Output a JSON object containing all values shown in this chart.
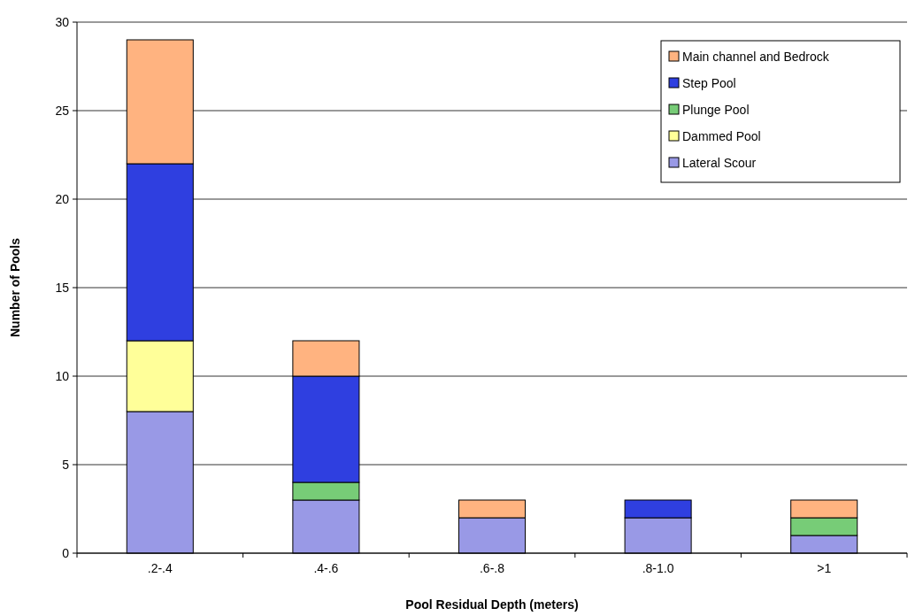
{
  "chart_data": {
    "type": "bar",
    "stacked": true,
    "xlabel": "Pool Residual Depth (meters)",
    "ylabel": "Number of Pools",
    "categories": [
      ".2-.4",
      ".4-.6",
      ".6-.8",
      ".8-1.0",
      ">1"
    ],
    "series": [
      {
        "name": "Lateral Scour",
        "color": "#9999e6",
        "values": [
          8,
          3,
          2,
          2,
          1
        ]
      },
      {
        "name": "Dammed Pool",
        "color": "#ffff99",
        "values": [
          4,
          0,
          0,
          0,
          0
        ]
      },
      {
        "name": "Plunge Pool",
        "color": "#77cc77",
        "values": [
          0,
          1,
          0,
          0,
          1
        ]
      },
      {
        "name": "Step Pool",
        "color": "#2f3fe0",
        "values": [
          10,
          6,
          0,
          1,
          0
        ]
      },
      {
        "name": "Main channel and Bedrock",
        "color": "#ffb380",
        "values": [
          7,
          2,
          1,
          0,
          1
        ]
      }
    ],
    "ylim": [
      0,
      30
    ],
    "yticks": [
      0,
      5,
      10,
      15,
      20,
      25,
      30
    ],
    "grid": "y",
    "legend": "top right"
  }
}
